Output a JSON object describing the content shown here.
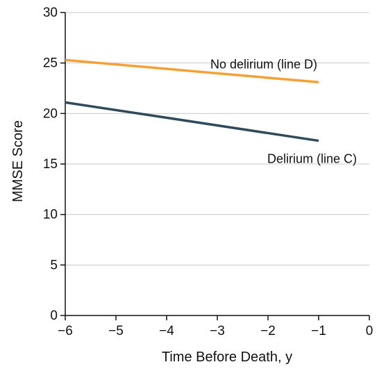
{
  "chart_data": {
    "type": "line",
    "xlabel": "Time Before Death, y",
    "ylabel": "MMSE Score",
    "xlim": [
      -6,
      0
    ],
    "ylim": [
      0,
      30
    ],
    "xticks": [
      -6,
      -5,
      -4,
      -3,
      -2,
      -1,
      0
    ],
    "yticks": [
      0,
      5,
      10,
      15,
      20,
      25,
      30
    ],
    "xtick_labels": [
      "−6",
      "−5",
      "−4",
      "−3",
      "−2",
      "−1",
      "0"
    ],
    "ytick_labels": [
      "0",
      "5",
      "10",
      "15",
      "20",
      "25",
      "30"
    ],
    "grid": "horizontal",
    "series": [
      {
        "name": "No delirium (line D)",
        "color": "#f5a033",
        "x": [
          -6,
          -1
        ],
        "y": [
          25.3,
          23.1
        ]
      },
      {
        "name": "Delirium (line C)",
        "color": "#2d4b5a",
        "x": [
          -6,
          -1
        ],
        "y": [
          21.1,
          17.3
        ]
      }
    ]
  }
}
